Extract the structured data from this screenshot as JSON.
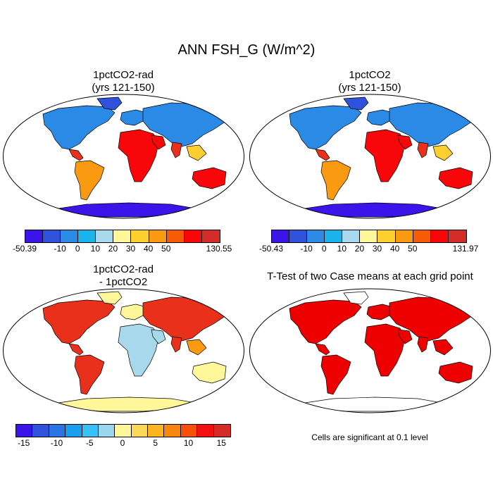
{
  "title": "ANN FSH_G (W/m^2)",
  "panels": [
    {
      "title_line1": "1pctCO2-rad",
      "title_line2": "(yrs 121-150)"
    },
    {
      "title_line1": "1pctCO2",
      "title_line2": "(yrs 121-150)"
    },
    {
      "title_line1": "1pctCO2-rad",
      "title_line2": "- 1pctCO2"
    },
    {
      "title_line1": "T-Test of two Case means at each grid point",
      "title_line2": ""
    }
  ],
  "colorbar_abs": {
    "colors": [
      "#3a14e8",
      "#2f52dc",
      "#2a8ae6",
      "#1ab4ec",
      "#a8d8ec",
      "#fff79a",
      "#fdd030",
      "#f99a10",
      "#f95a08",
      "#f8060a",
      "#d42a28"
    ],
    "levels": [
      -10,
      0,
      10,
      20,
      30,
      40,
      50
    ]
  },
  "colorbar_left": {
    "min_label": "-50.39",
    "max_label": "130.55"
  },
  "colorbar_right": {
    "min_label": "-50.43",
    "max_label": "131.97"
  },
  "colorbar_diff": {
    "colors": [
      "#3a14e8",
      "#2f52dc",
      "#2a74e4",
      "#1a9ef0",
      "#36c2f4",
      "#9ad6ee",
      "#fff79a",
      "#fdd75a",
      "#fbb520",
      "#f9860e",
      "#f8500a",
      "#f21010",
      "#d42a28"
    ],
    "tick_labels": [
      "-15",
      "-10",
      "-5",
      "0",
      "5",
      "10",
      "15"
    ]
  },
  "footnote": "Cells are significant at 0.1 level",
  "colors": {
    "land_warm": "#e8301a",
    "land_hot": "#f8060a",
    "land_orange": "#f99a10",
    "land_yellow": "#fdd030",
    "land_cool": "#2a8ae6",
    "land_cold": "#2f52dc",
    "antarctica": "#3a14e8",
    "diff_yellow": "#fff79a",
    "diff_light_blue": "#a8d8ec",
    "signif": "#ee0000"
  }
}
